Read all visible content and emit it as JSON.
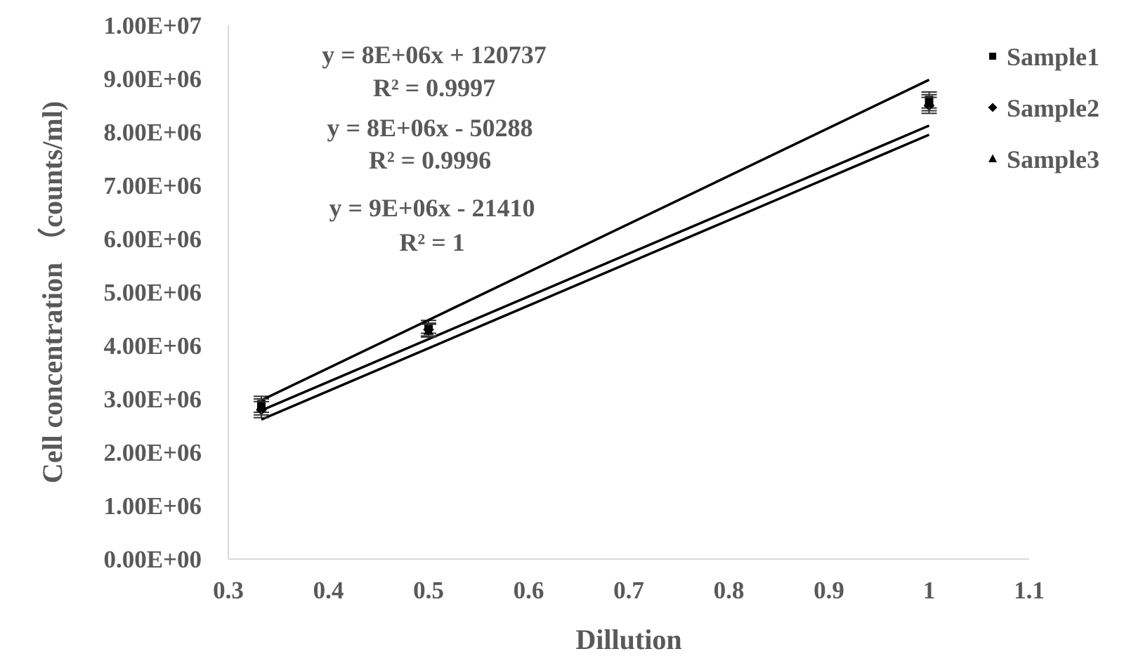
{
  "chart_data": {
    "type": "scatter",
    "title": "",
    "xlabel": "Dillution",
    "ylabel": "Cell concentration （counts/ml)",
    "xlim": [
      0.3,
      1.1
    ],
    "ylim": [
      0,
      10000000
    ],
    "x_ticks": [
      "0.3",
      "0.4",
      "0.5",
      "0.6",
      "0.7",
      "0.8",
      "0.9",
      "1",
      "1.1"
    ],
    "y_ticks": [
      "0.00E+00",
      "1.00E+06",
      "2.00E+06",
      "3.00E+06",
      "4.00E+06",
      "5.00E+06",
      "6.00E+06",
      "7.00E+06",
      "8.00E+06",
      "9.00E+06",
      "1.00E+07"
    ],
    "legend_position": "top-right",
    "grid": false,
    "series": [
      {
        "name": "Sample1",
        "marker": "square",
        "x": [
          0.333,
          0.5,
          1
        ],
        "y": [
          2900000,
          4350000,
          8600000
        ],
        "error": [
          150000,
          120000,
          150000
        ],
        "trendline": {
          "slope": 8000000,
          "intercept": 120737
        },
        "equation": "y = 8E+06x + 120737",
        "r_squared": "R² = 0.9997"
      },
      {
        "name": "Sample2",
        "marker": "diamond",
        "x": [
          0.333,
          0.5,
          1
        ],
        "y": [
          2800000,
          4300000,
          8500000
        ],
        "error": [
          150000,
          120000,
          150000
        ],
        "trendline": {
          "slope": 8000000,
          "intercept": -50288
        },
        "equation": "y = 8E+06x - 50288",
        "r_squared": "R² = 0.9996"
      },
      {
        "name": "Sample3",
        "marker": "triangle",
        "x": [
          0.333,
          0.5,
          1
        ],
        "y": [
          2850000,
          4280000,
          8550000
        ],
        "error": [
          150000,
          120000,
          150000
        ],
        "trendline": {
          "slope": 9000000,
          "intercept": -21410
        },
        "equation": "y = 9E+06x - 21410",
        "r_squared": "R² = 1"
      }
    ],
    "colors": {
      "text": "#595959",
      "axis": "#d9d9d9",
      "series": "#000000"
    }
  }
}
